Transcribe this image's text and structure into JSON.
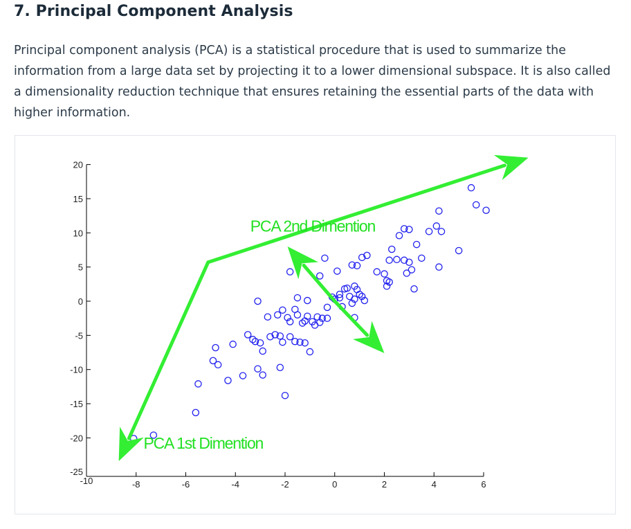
{
  "section": {
    "title": "7. Principal Component Analysis",
    "intro": "Principal component analysis (PCA) is a statistical procedure that is used to summarize the information from a large data set by projecting it to a lower dimensional subspace. It is also called a dimensionality reduction technique that ensures retaining the essential parts of the data with higher information."
  },
  "colors": {
    "points": "#2020ee",
    "arrows": "#33ee33",
    "annotation": "#22e022"
  },
  "chart_data": {
    "type": "scatter",
    "title": "",
    "xlabel": "",
    "ylabel": "",
    "xlim": [
      -10,
      6
    ],
    "ylim": [
      -25,
      20
    ],
    "x_ticks": [
      -10,
      -8,
      -6,
      -4,
      -2,
      0,
      2,
      4,
      6
    ],
    "y_ticks": [
      20,
      15,
      10,
      5,
      0,
      -5,
      -10,
      -15,
      -20,
      -25
    ],
    "grid": false,
    "marker": "open-circle",
    "points": [
      [
        -8.1,
        -20.1
      ],
      [
        -7.3,
        -19.6
      ],
      [
        -5.6,
        -16.3
      ],
      [
        -5.5,
        -12.1
      ],
      [
        -4.3,
        -11.6
      ],
      [
        -3.7,
        -10.9
      ],
      [
        -3.1,
        -9.9
      ],
      [
        -2.9,
        -10.8
      ],
      [
        -2.2,
        -9.7
      ],
      [
        -2.0,
        -13.8
      ],
      [
        -4.8,
        -6.8
      ],
      [
        -4.9,
        -8.7
      ],
      [
        -4.7,
        -9.3
      ],
      [
        -4.1,
        -6.3
      ],
      [
        -3.5,
        -4.9
      ],
      [
        -3.3,
        -5.6
      ],
      [
        -3.2,
        -5.9
      ],
      [
        -3.0,
        -6.1
      ],
      [
        -2.9,
        -7.3
      ],
      [
        -2.6,
        -5.2
      ],
      [
        -2.4,
        -4.9
      ],
      [
        -2.2,
        -5.1
      ],
      [
        -2.1,
        -6.0
      ],
      [
        -1.8,
        -5.2
      ],
      [
        -1.6,
        -5.9
      ],
      [
        -1.4,
        -6.0
      ],
      [
        -1.2,
        -6.1
      ],
      [
        -1.0,
        -7.4
      ],
      [
        -2.7,
        -2.3
      ],
      [
        -2.3,
        -2.0
      ],
      [
        -2.1,
        -1.3
      ],
      [
        -1.9,
        -2.4
      ],
      [
        -1.8,
        -3.0
      ],
      [
        -1.6,
        -1.2
      ],
      [
        -1.5,
        -2.0
      ],
      [
        -1.3,
        -3.2
      ],
      [
        -1.2,
        -2.9
      ],
      [
        -1.1,
        -2.2
      ],
      [
        -0.9,
        -3.0
      ],
      [
        -0.8,
        -3.5
      ],
      [
        -0.7,
        -2.3
      ],
      [
        -0.6,
        -3.1
      ],
      [
        -0.5,
        -2.5
      ],
      [
        -0.3,
        -2.5
      ],
      [
        -1.5,
        0.5
      ],
      [
        -1.1,
        0.1
      ],
      [
        -3.1,
        0.0
      ],
      [
        -1.8,
        4.3
      ],
      [
        -0.6,
        3.7
      ],
      [
        -0.4,
        6.3
      ],
      [
        0.1,
        4.4
      ],
      [
        0.7,
        5.3
      ],
      [
        -0.3,
        -0.9
      ],
      [
        -0.1,
        0.6
      ],
      [
        0.0,
        0.3
      ],
      [
        0.2,
        1.0
      ],
      [
        0.2,
        0.5
      ],
      [
        0.3,
        -0.8
      ],
      [
        0.4,
        1.8
      ],
      [
        0.5,
        1.9
      ],
      [
        0.6,
        0.7
      ],
      [
        0.7,
        -0.3
      ],
      [
        0.8,
        2.2
      ],
      [
        0.8,
        0.3
      ],
      [
        0.9,
        1.7
      ],
      [
        1.0,
        1.0
      ],
      [
        1.1,
        0.7
      ],
      [
        1.2,
        0.1
      ],
      [
        0.8,
        -2.4
      ],
      [
        0.9,
        5.2
      ],
      [
        1.1,
        6.4
      ],
      [
        1.3,
        6.7
      ],
      [
        1.7,
        4.3
      ],
      [
        2.0,
        4.0
      ],
      [
        2.1,
        3.0
      ],
      [
        2.1,
        2.2
      ],
      [
        2.2,
        2.8
      ],
      [
        2.2,
        6.0
      ],
      [
        2.3,
        7.6
      ],
      [
        2.5,
        6.1
      ],
      [
        2.6,
        9.6
      ],
      [
        2.8,
        6.0
      ],
      [
        2.8,
        10.6
      ],
      [
        2.9,
        4.1
      ],
      [
        3.0,
        5.7
      ],
      [
        3.1,
        4.6
      ],
      [
        3.3,
        8.3
      ],
      [
        3.2,
        1.8
      ],
      [
        3.5,
        6.3
      ],
      [
        3.8,
        10.2
      ],
      [
        4.1,
        11.0
      ],
      [
        4.3,
        10.2
      ],
      [
        4.2,
        13.2
      ],
      [
        4.2,
        5.0
      ],
      [
        5.0,
        7.4
      ],
      [
        5.5,
        16.6
      ],
      [
        5.7,
        14.1
      ],
      [
        6.1,
        13.3
      ],
      [
        3.0,
        10.5
      ]
    ],
    "arrows": [
      {
        "from": [
          -5.1,
          5.7
        ],
        "to": [
          -8.7,
          -23.4
        ],
        "direction": "down-left"
      },
      {
        "from": [
          -5.1,
          5.7
        ],
        "to": [
          7.8,
          21.0
        ],
        "direction": "up-right"
      },
      {
        "from": [
          0.0,
          0.0
        ],
        "to": [
          -1.9,
          8.0
        ],
        "direction": "up-left"
      },
      {
        "from": [
          0.0,
          0.0
        ],
        "to": [
          2.0,
          -7.6
        ],
        "direction": "down-right"
      }
    ],
    "annotations": [
      {
        "text": "PCA 2nd Dimention",
        "x": -3.4,
        "y": 10.2
      },
      {
        "text": "PCA 1st Dimention",
        "x": -7.7,
        "y": -21.6
      }
    ]
  }
}
